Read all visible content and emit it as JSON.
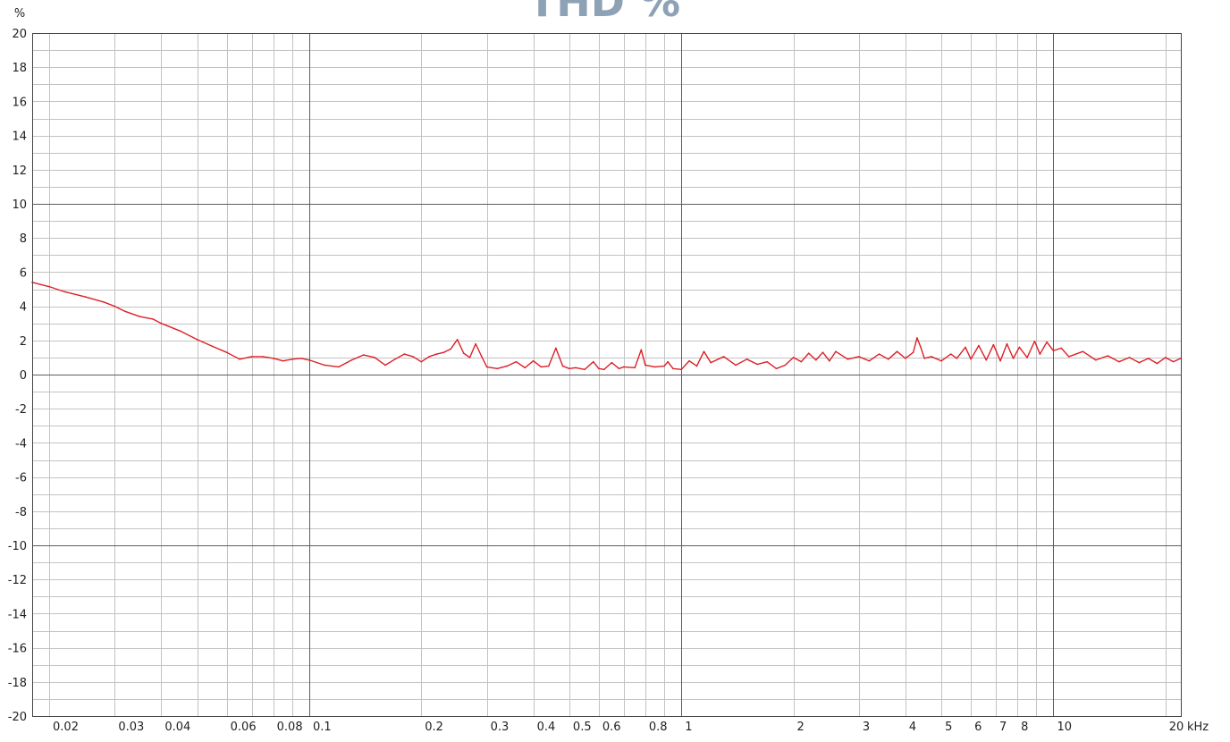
{
  "chart_data": {
    "type": "line",
    "title": "THD %",
    "ylabel": "%",
    "xlabel": "kHz",
    "x_scale": "log",
    "xlim": [
      0.018,
      22
    ],
    "ylim": [
      -20,
      20
    ],
    "grid": true,
    "x_tick_labels": [
      {
        "value": 0.02,
        "label": "0.02"
      },
      {
        "value": 0.03,
        "label": "0.03"
      },
      {
        "value": 0.04,
        "label": "0.04"
      },
      {
        "value": 0.06,
        "label": "0.06"
      },
      {
        "value": 0.08,
        "label": "0.08"
      },
      {
        "value": 0.1,
        "label": "0.1"
      },
      {
        "value": 0.2,
        "label": "0.2"
      },
      {
        "value": 0.3,
        "label": "0.3"
      },
      {
        "value": 0.4,
        "label": "0.4"
      },
      {
        "value": 0.5,
        "label": "0.5"
      },
      {
        "value": 0.6,
        "label": "0.6"
      },
      {
        "value": 0.8,
        "label": "0.8"
      },
      {
        "value": 1,
        "label": "1"
      },
      {
        "value": 2,
        "label": "2"
      },
      {
        "value": 3,
        "label": "3"
      },
      {
        "value": 4,
        "label": "4"
      },
      {
        "value": 5,
        "label": "5"
      },
      {
        "value": 6,
        "label": "6"
      },
      {
        "value": 7,
        "label": "7"
      },
      {
        "value": 8,
        "label": "8"
      },
      {
        "value": 10,
        "label": "10"
      },
      {
        "value": 20,
        "label": "20"
      }
    ],
    "y_ticks": [
      20,
      18,
      16,
      14,
      12,
      10,
      8,
      6,
      4,
      2,
      0,
      -2,
      -4,
      -6,
      -8,
      -10,
      -12,
      -14,
      -16,
      -18,
      -20
    ],
    "series": [
      {
        "color": "#dd1f26",
        "points": [
          [
            0.018,
            5.4
          ],
          [
            0.02,
            5.15
          ],
          [
            0.022,
            4.85
          ],
          [
            0.025,
            4.55
          ],
          [
            0.028,
            4.25
          ],
          [
            0.03,
            4.0
          ],
          [
            0.032,
            3.7
          ],
          [
            0.035,
            3.4
          ],
          [
            0.038,
            3.25
          ],
          [
            0.04,
            3.0
          ],
          [
            0.045,
            2.55
          ],
          [
            0.05,
            2.05
          ],
          [
            0.055,
            1.65
          ],
          [
            0.06,
            1.3
          ],
          [
            0.065,
            0.9
          ],
          [
            0.07,
            1.05
          ],
          [
            0.075,
            1.05
          ],
          [
            0.08,
            0.95
          ],
          [
            0.085,
            0.8
          ],
          [
            0.09,
            0.9
          ],
          [
            0.095,
            0.95
          ],
          [
            0.1,
            0.85
          ],
          [
            0.11,
            0.55
          ],
          [
            0.12,
            0.45
          ],
          [
            0.13,
            0.85
          ],
          [
            0.14,
            1.15
          ],
          [
            0.15,
            1.0
          ],
          [
            0.16,
            0.55
          ],
          [
            0.17,
            0.9
          ],
          [
            0.18,
            1.2
          ],
          [
            0.19,
            1.05
          ],
          [
            0.2,
            0.75
          ],
          [
            0.21,
            1.05
          ],
          [
            0.22,
            1.2
          ],
          [
            0.23,
            1.3
          ],
          [
            0.24,
            1.5
          ],
          [
            0.25,
            2.05
          ],
          [
            0.26,
            1.25
          ],
          [
            0.27,
            1.0
          ],
          [
            0.28,
            1.8
          ],
          [
            0.29,
            1.1
          ],
          [
            0.3,
            0.45
          ],
          [
            0.32,
            0.35
          ],
          [
            0.34,
            0.5
          ],
          [
            0.36,
            0.75
          ],
          [
            0.38,
            0.4
          ],
          [
            0.4,
            0.8
          ],
          [
            0.42,
            0.45
          ],
          [
            0.44,
            0.5
          ],
          [
            0.46,
            1.55
          ],
          [
            0.48,
            0.5
          ],
          [
            0.5,
            0.35
          ],
          [
            0.52,
            0.4
          ],
          [
            0.55,
            0.3
          ],
          [
            0.58,
            0.75
          ],
          [
            0.6,
            0.35
          ],
          [
            0.62,
            0.3
          ],
          [
            0.65,
            0.7
          ],
          [
            0.68,
            0.35
          ],
          [
            0.7,
            0.45
          ],
          [
            0.75,
            0.4
          ],
          [
            0.78,
            1.45
          ],
          [
            0.8,
            0.55
          ],
          [
            0.85,
            0.45
          ],
          [
            0.9,
            0.5
          ],
          [
            0.92,
            0.75
          ],
          [
            0.95,
            0.35
          ],
          [
            1.0,
            0.3
          ],
          [
            1.05,
            0.8
          ],
          [
            1.1,
            0.5
          ],
          [
            1.15,
            1.35
          ],
          [
            1.2,
            0.7
          ],
          [
            1.3,
            1.05
          ],
          [
            1.4,
            0.55
          ],
          [
            1.5,
            0.9
          ],
          [
            1.6,
            0.6
          ],
          [
            1.7,
            0.75
          ],
          [
            1.8,
            0.35
          ],
          [
            1.9,
            0.55
          ],
          [
            2.0,
            1.0
          ],
          [
            2.1,
            0.75
          ],
          [
            2.2,
            1.25
          ],
          [
            2.3,
            0.85
          ],
          [
            2.4,
            1.3
          ],
          [
            2.5,
            0.8
          ],
          [
            2.6,
            1.35
          ],
          [
            2.8,
            0.9
          ],
          [
            3.0,
            1.05
          ],
          [
            3.2,
            0.8
          ],
          [
            3.4,
            1.2
          ],
          [
            3.6,
            0.9
          ],
          [
            3.8,
            1.35
          ],
          [
            4.0,
            0.95
          ],
          [
            4.2,
            1.3
          ],
          [
            4.3,
            2.15
          ],
          [
            4.4,
            1.6
          ],
          [
            4.5,
            0.95
          ],
          [
            4.7,
            1.05
          ],
          [
            5.0,
            0.8
          ],
          [
            5.3,
            1.2
          ],
          [
            5.5,
            0.95
          ],
          [
            5.8,
            1.6
          ],
          [
            6.0,
            0.9
          ],
          [
            6.3,
            1.7
          ],
          [
            6.6,
            0.85
          ],
          [
            6.9,
            1.75
          ],
          [
            7.2,
            0.8
          ],
          [
            7.5,
            1.8
          ],
          [
            7.8,
            0.95
          ],
          [
            8.1,
            1.6
          ],
          [
            8.5,
            1.0
          ],
          [
            8.9,
            1.95
          ],
          [
            9.2,
            1.2
          ],
          [
            9.6,
            1.9
          ],
          [
            10.0,
            1.4
          ],
          [
            10.5,
            1.55
          ],
          [
            11.0,
            1.05
          ],
          [
            12.0,
            1.35
          ],
          [
            13.0,
            0.85
          ],
          [
            14.0,
            1.1
          ],
          [
            15.0,
            0.75
          ],
          [
            16.0,
            1.0
          ],
          [
            17.0,
            0.7
          ],
          [
            18.0,
            0.95
          ],
          [
            19.0,
            0.65
          ],
          [
            20.0,
            1.0
          ],
          [
            21.0,
            0.75
          ],
          [
            22.0,
            0.95
          ]
        ]
      }
    ]
  },
  "colors": {
    "line": "#dd1f26",
    "title": "#8ea2b6",
    "major_grid": "#5d5d5d",
    "minor_grid": "#c2c2c2",
    "frame": "#444444",
    "text": "#222222"
  }
}
